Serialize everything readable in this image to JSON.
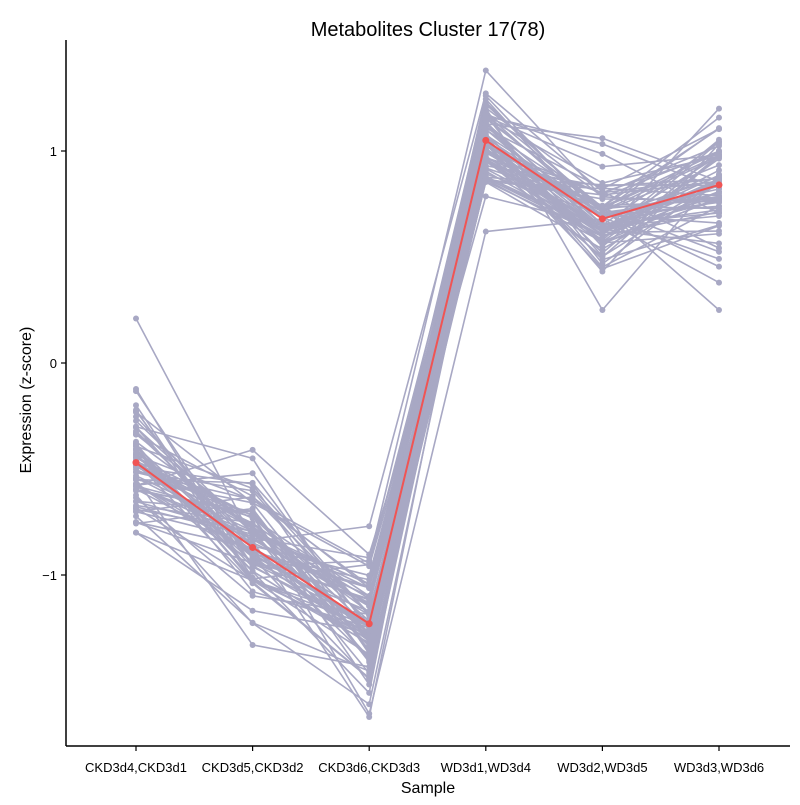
{
  "chart_data": {
    "type": "line",
    "title": "Metabolites Cluster 17(78)",
    "xlabel": "Sample",
    "ylabel": "Expression (z-score)",
    "categories": [
      "CKD3d4,CKD3d1",
      "CKD3d5,CKD3d2",
      "CKD3d6,CKD3d3",
      "WD3d1,WD3d4",
      "WD3d2,WD3d5",
      "WD3d3,WD3d6"
    ],
    "ylim": [
      -1.8,
      1.5
    ],
    "yticks": [
      -1,
      0,
      1
    ],
    "grid": false,
    "legend": "none",
    "member_count": 78,
    "colors": {
      "members": "#a8a8c4",
      "centroid": "#f05454"
    },
    "centroid": {
      "name": "",
      "values": [
        -0.47,
        -0.87,
        -1.23,
        1.05,
        0.68,
        0.84
      ]
    },
    "members_range": {
      "CKD3d4,CKD3d1": [
        -0.8,
        0.21
      ],
      "CKD3d5,CKD3d2": [
        -1.33,
        -0.41
      ],
      "CKD3d6,CKD3d3": [
        -1.67,
        -0.77
      ],
      "WD3d1,WD3d4": [
        0.62,
        1.38
      ],
      "WD3d2,WD3d5": [
        0.25,
        1.06
      ],
      "WD3d3,WD3d6": [
        0.25,
        1.2
      ]
    }
  }
}
